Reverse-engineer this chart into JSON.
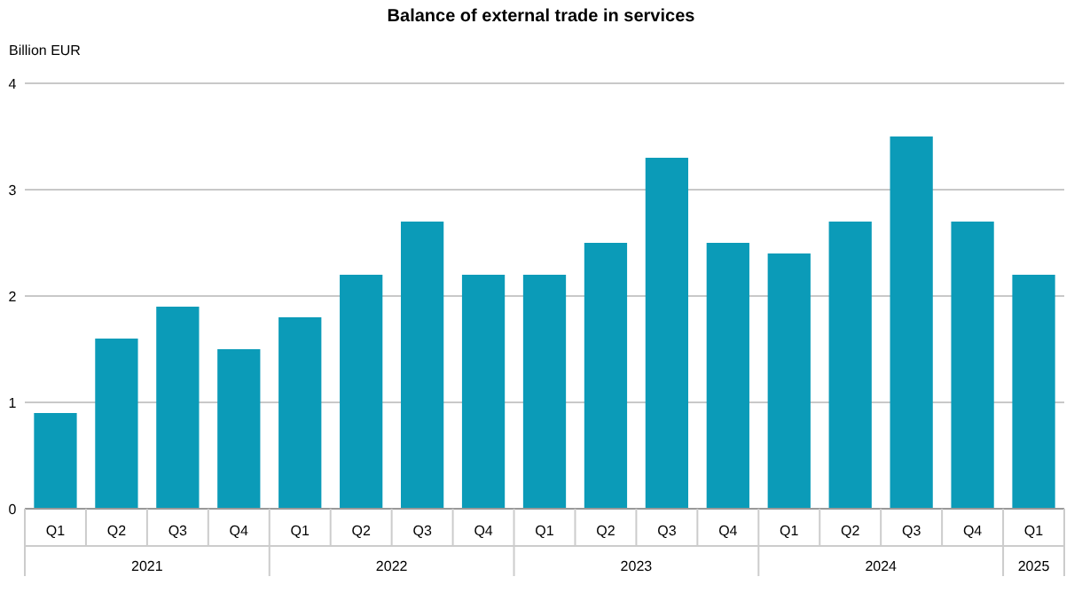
{
  "chart_data": {
    "type": "bar",
    "title": "Balance of external trade in services",
    "ylabel": "Billion EUR",
    "categories": [
      "Q1",
      "Q2",
      "Q3",
      "Q4",
      "Q1",
      "Q2",
      "Q3",
      "Q4",
      "Q1",
      "Q2",
      "Q3",
      "Q4",
      "Q1",
      "Q2",
      "Q3",
      "Q4",
      "Q1"
    ],
    "values": [
      0.9,
      1.6,
      1.9,
      1.5,
      1.8,
      2.2,
      2.7,
      2.2,
      2.2,
      2.5,
      3.3,
      2.5,
      2.4,
      2.7,
      3.5,
      2.7,
      2.2
    ],
    "color": "#0b9bb8",
    "ylim": [
      0,
      4
    ],
    "yticks": [
      0,
      1,
      2,
      3,
      4
    ],
    "grid": "y",
    "annotations": [
      "2021",
      "2022",
      "2023",
      "2024",
      "2025"
    ]
  }
}
